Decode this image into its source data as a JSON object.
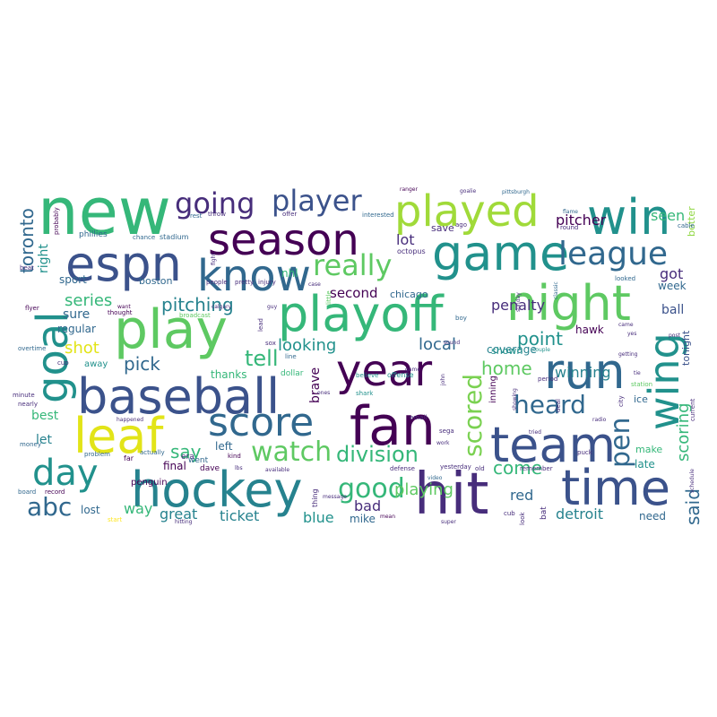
{
  "palette": {
    "dark_purple": "#440154",
    "indigo": "#3b528b",
    "blue": "#31688e",
    "teal": "#21918c",
    "green": "#35b779",
    "light_green": "#5ec962",
    "lime": "#90d743",
    "yellow": "#fde725"
  },
  "words": [
    {
      "id": "new",
      "text": "new"
    },
    {
      "id": "season",
      "text": "season"
    },
    {
      "id": "player",
      "text": "player"
    },
    {
      "id": "going",
      "text": "going"
    },
    {
      "id": "played",
      "text": "played"
    },
    {
      "id": "win",
      "text": "win"
    },
    {
      "id": "espn",
      "text": "espn"
    },
    {
      "id": "know",
      "text": "know"
    },
    {
      "id": "game",
      "text": "game"
    },
    {
      "id": "league",
      "text": "league"
    },
    {
      "id": "really",
      "text": "really"
    },
    {
      "id": "night",
      "text": "night"
    },
    {
      "id": "playoff",
      "text": "playoff"
    },
    {
      "id": "play",
      "text": "play"
    },
    {
      "id": "goal",
      "text": "goal"
    },
    {
      "id": "toronto",
      "text": "toronto"
    },
    {
      "id": "year",
      "text": "year"
    },
    {
      "id": "run",
      "text": "run"
    },
    {
      "id": "wing",
      "text": "wing"
    },
    {
      "id": "baseball",
      "text": "baseball"
    },
    {
      "id": "score",
      "text": "score"
    },
    {
      "id": "fan",
      "text": "fan"
    },
    {
      "id": "leaf",
      "text": "leaf"
    },
    {
      "id": "team",
      "text": "team"
    },
    {
      "id": "heard",
      "text": "heard"
    },
    {
      "id": "pen",
      "text": "pen"
    },
    {
      "id": "day",
      "text": "day"
    },
    {
      "id": "hockey",
      "text": "hockey"
    },
    {
      "id": "hit",
      "text": "hit"
    },
    {
      "id": "time",
      "text": "time"
    },
    {
      "id": "scored",
      "text": "scored"
    },
    {
      "id": "watch",
      "text": "watch"
    },
    {
      "id": "division",
      "text": "division"
    },
    {
      "id": "good",
      "text": "good"
    },
    {
      "id": "abc",
      "text": "abc"
    },
    {
      "id": "series",
      "text": "series"
    },
    {
      "id": "pitching",
      "text": "pitching"
    },
    {
      "id": "pick",
      "text": "pick"
    },
    {
      "id": "shot",
      "text": "shot"
    },
    {
      "id": "tell",
      "text": "tell"
    },
    {
      "id": "say",
      "text": "say"
    },
    {
      "id": "lot",
      "text": "lot"
    },
    {
      "id": "pitcher",
      "text": "pitcher"
    },
    {
      "id": "seen",
      "text": "seen"
    },
    {
      "id": "penalty",
      "text": "penalty"
    },
    {
      "id": "point",
      "text": "point"
    },
    {
      "id": "local",
      "text": "local"
    },
    {
      "id": "looking",
      "text": "looking"
    },
    {
      "id": "second",
      "text": "second"
    },
    {
      "id": "home",
      "text": "home"
    },
    {
      "id": "winning",
      "text": "winning"
    },
    {
      "id": "scoring",
      "text": "scoring"
    },
    {
      "id": "said",
      "text": "said"
    },
    {
      "id": "come",
      "text": "come"
    },
    {
      "id": "playing",
      "text": "playing"
    },
    {
      "id": "ticket",
      "text": "ticket"
    },
    {
      "id": "great",
      "text": "great"
    },
    {
      "id": "detroit",
      "text": "detroit"
    },
    {
      "id": "red",
      "text": "red"
    },
    {
      "id": "blue",
      "text": "blue"
    },
    {
      "id": "bad",
      "text": "bad"
    },
    {
      "id": "way",
      "text": "way"
    },
    {
      "id": "lost",
      "text": "lost"
    },
    {
      "id": "got",
      "text": "got"
    },
    {
      "id": "week",
      "text": "week"
    },
    {
      "id": "ball",
      "text": "ball"
    },
    {
      "id": "best",
      "text": "best"
    },
    {
      "id": "let",
      "text": "let"
    },
    {
      "id": "sure",
      "text": "sure"
    },
    {
      "id": "right",
      "text": "right"
    },
    {
      "id": "sport",
      "text": "sport"
    },
    {
      "id": "regular",
      "text": "regular"
    },
    {
      "id": "boston",
      "text": "boston"
    },
    {
      "id": "chicago",
      "text": "chicago"
    },
    {
      "id": "save",
      "text": "save"
    },
    {
      "id": "nhl",
      "text": "nhl"
    },
    {
      "id": "thanks",
      "text": "thanks"
    },
    {
      "id": "left",
      "text": "left"
    },
    {
      "id": "brave",
      "text": "brave"
    },
    {
      "id": "coverage",
      "text": "coverage"
    },
    {
      "id": "hawk",
      "text": "hawk"
    },
    {
      "id": "better",
      "text": "better"
    },
    {
      "id": "tonight",
      "text": "tonight"
    },
    {
      "id": "late",
      "text": "late"
    },
    {
      "id": "need",
      "text": "need"
    },
    {
      "id": "make",
      "text": "make"
    },
    {
      "id": "mike",
      "text": "mike"
    },
    {
      "id": "dave",
      "text": "dave"
    },
    {
      "id": "final",
      "text": "final"
    },
    {
      "id": "shown",
      "text": "shown"
    },
    {
      "id": "inning",
      "text": "inning"
    },
    {
      "id": "away",
      "text": "away"
    },
    {
      "id": "penguin",
      "text": "penguin"
    },
    {
      "id": "phillies",
      "text": "phillies"
    },
    {
      "id": "stadium",
      "text": "stadium"
    },
    {
      "id": "chance",
      "text": "chance"
    },
    {
      "id": "throw",
      "text": "throw"
    },
    {
      "id": "offer",
      "text": "offer"
    },
    {
      "id": "interested",
      "text": "interested"
    },
    {
      "id": "octopus",
      "text": "octopus"
    },
    {
      "id": "pittsburgh",
      "text": "pittsburgh"
    },
    {
      "id": "goalie",
      "text": "goalie"
    },
    {
      "id": "ranger",
      "text": "ranger"
    },
    {
      "id": "cable",
      "text": "cable"
    },
    {
      "id": "round",
      "text": "round"
    },
    {
      "id": "flame",
      "text": "flame"
    },
    {
      "id": "probably",
      "text": "probably"
    },
    {
      "id": "rest",
      "text": "rest"
    },
    {
      "id": "people",
      "text": "people"
    },
    {
      "id": "pretty",
      "text": "pretty"
    },
    {
      "id": "injury",
      "text": "injury"
    },
    {
      "id": "case",
      "text": "case"
    },
    {
      "id": "looked",
      "text": "looked"
    },
    {
      "id": "thought",
      "text": "thought"
    },
    {
      "id": "want",
      "text": "want"
    },
    {
      "id": "broadcast",
      "text": "broadcast"
    },
    {
      "id": "era",
      "text": "era"
    },
    {
      "id": "went",
      "text": "went"
    },
    {
      "id": "dollar",
      "text": "dollar"
    },
    {
      "id": "believe",
      "text": "believe"
    },
    {
      "id": "offense",
      "text": "offense"
    },
    {
      "id": "shark",
      "text": "shark"
    },
    {
      "id": "email",
      "text": "email"
    },
    {
      "id": "sega",
      "text": "sega"
    },
    {
      "id": "defense",
      "text": "defense"
    },
    {
      "id": "yesterday",
      "text": "yesterday"
    },
    {
      "id": "old",
      "text": "old"
    },
    {
      "id": "video",
      "text": "video"
    },
    {
      "id": "remember",
      "text": "remember"
    },
    {
      "id": "thing",
      "text": "thing"
    },
    {
      "id": "lead",
      "text": "lead"
    },
    {
      "id": "line",
      "text": "line"
    },
    {
      "id": "period",
      "text": "period"
    },
    {
      "id": "station",
      "text": "station"
    },
    {
      "id": "ice",
      "text": "ice"
    },
    {
      "id": "puck",
      "text": "puck"
    },
    {
      "id": "cup",
      "text": "cup"
    },
    {
      "id": "bat",
      "text": "bat"
    },
    {
      "id": "flyer",
      "text": "flyer"
    },
    {
      "id": "overtime",
      "text": "overtime"
    },
    {
      "id": "money",
      "text": "money"
    },
    {
      "id": "board",
      "text": "board"
    },
    {
      "id": "record",
      "text": "record"
    },
    {
      "id": "problem",
      "text": "problem"
    },
    {
      "id": "actually",
      "text": "actually"
    },
    {
      "id": "far",
      "text": "far"
    },
    {
      "id": "kind",
      "text": "kind"
    },
    {
      "id": "available",
      "text": "available"
    },
    {
      "id": "little",
      "text": "little"
    },
    {
      "id": "boy",
      "text": "boy"
    },
    {
      "id": "sunday",
      "text": "sunday"
    },
    {
      "id": "classic",
      "text": "classic"
    },
    {
      "id": "couple",
      "text": "couple"
    },
    {
      "id": "showing",
      "text": "showing"
    },
    {
      "id": "cub",
      "text": "cub"
    },
    {
      "id": "start",
      "text": "start"
    },
    {
      "id": "hitting",
      "text": "hitting"
    },
    {
      "id": "calgary",
      "text": "calgary"
    },
    {
      "id": "happened",
      "text": "happened"
    },
    {
      "id": "mean",
      "text": "mean"
    },
    {
      "id": "super",
      "text": "super"
    },
    {
      "id": "beat",
      "text": "beat"
    },
    {
      "id": "minute",
      "text": "minute"
    },
    {
      "id": "nearly",
      "text": "nearly"
    },
    {
      "id": "john",
      "text": "john"
    },
    {
      "id": "tie",
      "text": "tie"
    },
    {
      "id": "city",
      "text": "city"
    },
    {
      "id": "current",
      "text": "current"
    },
    {
      "id": "schedule",
      "text": "schedule"
    },
    {
      "id": "came",
      "text": "came"
    },
    {
      "id": "post",
      "text": "post"
    },
    {
      "id": "yes",
      "text": "yes"
    },
    {
      "id": "getting",
      "text": "getting"
    },
    {
      "id": "sound",
      "text": "sound"
    },
    {
      "id": "work",
      "text": "work"
    },
    {
      "id": "message",
      "text": "message"
    },
    {
      "id": "ones",
      "text": "ones"
    },
    {
      "id": "tried",
      "text": "tried"
    },
    {
      "id": "radio",
      "text": "radio"
    },
    {
      "id": "game2",
      "text": "game"
    },
    {
      "id": "look",
      "text": "look"
    },
    {
      "id": "deal",
      "text": "deal"
    },
    {
      "id": "fight",
      "text": "fight"
    },
    {
      "id": "sox",
      "text": "sox"
    },
    {
      "id": "guy",
      "text": "guy"
    },
    {
      "id": "lbs",
      "text": "lbs"
    },
    {
      "id": "ago",
      "text": "ago"
    }
  ]
}
